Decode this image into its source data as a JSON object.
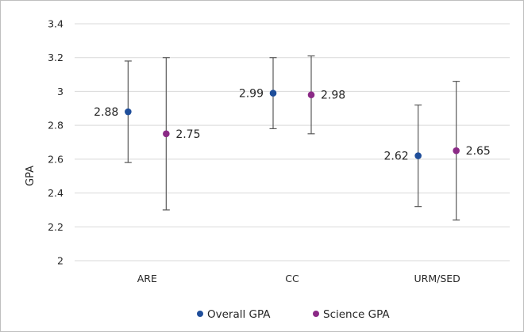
{
  "chart_data": {
    "type": "scatter",
    "title": "",
    "xlabel": "",
    "ylabel": "GPA",
    "categories": [
      "ARE",
      "CC",
      "URM/SED"
    ],
    "ylim": [
      2,
      3.4
    ],
    "yticks": [
      "2",
      "2.2",
      "2.4",
      "2.6",
      "2.8",
      "3",
      "3.2",
      "3.4"
    ],
    "grid": true,
    "legend_position": "bottom",
    "series": [
      {
        "name": "Overall GPA",
        "color": "#1f4e9a",
        "values": [
          2.88,
          2.99,
          2.62
        ],
        "labels": [
          "2.88",
          "2.99",
          "2.62"
        ],
        "error_low": [
          2.58,
          2.78,
          2.32
        ],
        "error_high": [
          3.18,
          3.2,
          2.92
        ],
        "label_side": "left"
      },
      {
        "name": "Science GPA",
        "color": "#8b2a86",
        "values": [
          2.75,
          2.98,
          2.65
        ],
        "labels": [
          "2.75",
          "2.98",
          "2.65"
        ],
        "error_low": [
          2.3,
          2.75,
          2.24
        ],
        "error_high": [
          3.2,
          3.21,
          3.06
        ],
        "label_side": "right"
      }
    ]
  }
}
